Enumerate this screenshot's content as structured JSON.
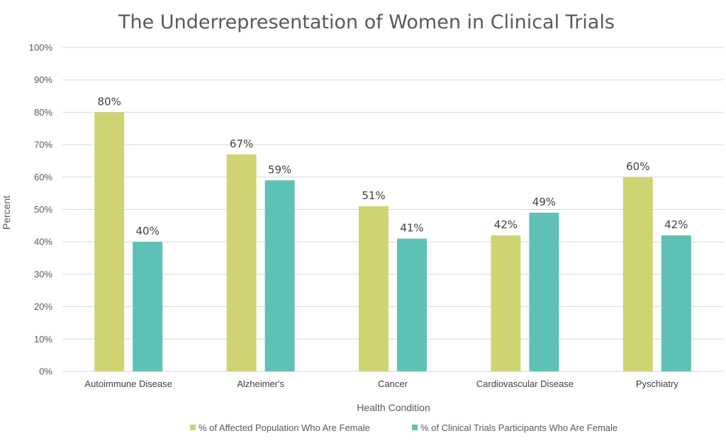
{
  "chart_data": {
    "type": "bar",
    "title": "The Underrepresentation of Women in Clinical Trials",
    "xlabel": "Health Condition",
    "ylabel": "Percent",
    "ylim": [
      0,
      100
    ],
    "yticks": [
      "0%",
      "10%",
      "20%",
      "30%",
      "40%",
      "50%",
      "60%",
      "70%",
      "80%",
      "90%",
      "100%"
    ],
    "grid": true,
    "legend_position": "bottom",
    "categories": [
      "Autoimmune Disease",
      "Alzheimer's",
      "Cancer",
      "Cardiovascular Disease",
      "Pyschiatry"
    ],
    "series": [
      {
        "name": "% of Affected Population Who Are Female",
        "color": "#cfd473",
        "values": [
          80,
          67,
          51,
          42,
          60
        ],
        "labels": [
          "80%",
          "67%",
          "51%",
          "42%",
          "60%"
        ]
      },
      {
        "name": "% of Clinical Trials Participants Who Are Female",
        "color": "#5ec1b6",
        "values": [
          40,
          59,
          41,
          49,
          42
        ],
        "labels": [
          "40%",
          "59%",
          "41%",
          "49%",
          "42%"
        ]
      }
    ]
  }
}
